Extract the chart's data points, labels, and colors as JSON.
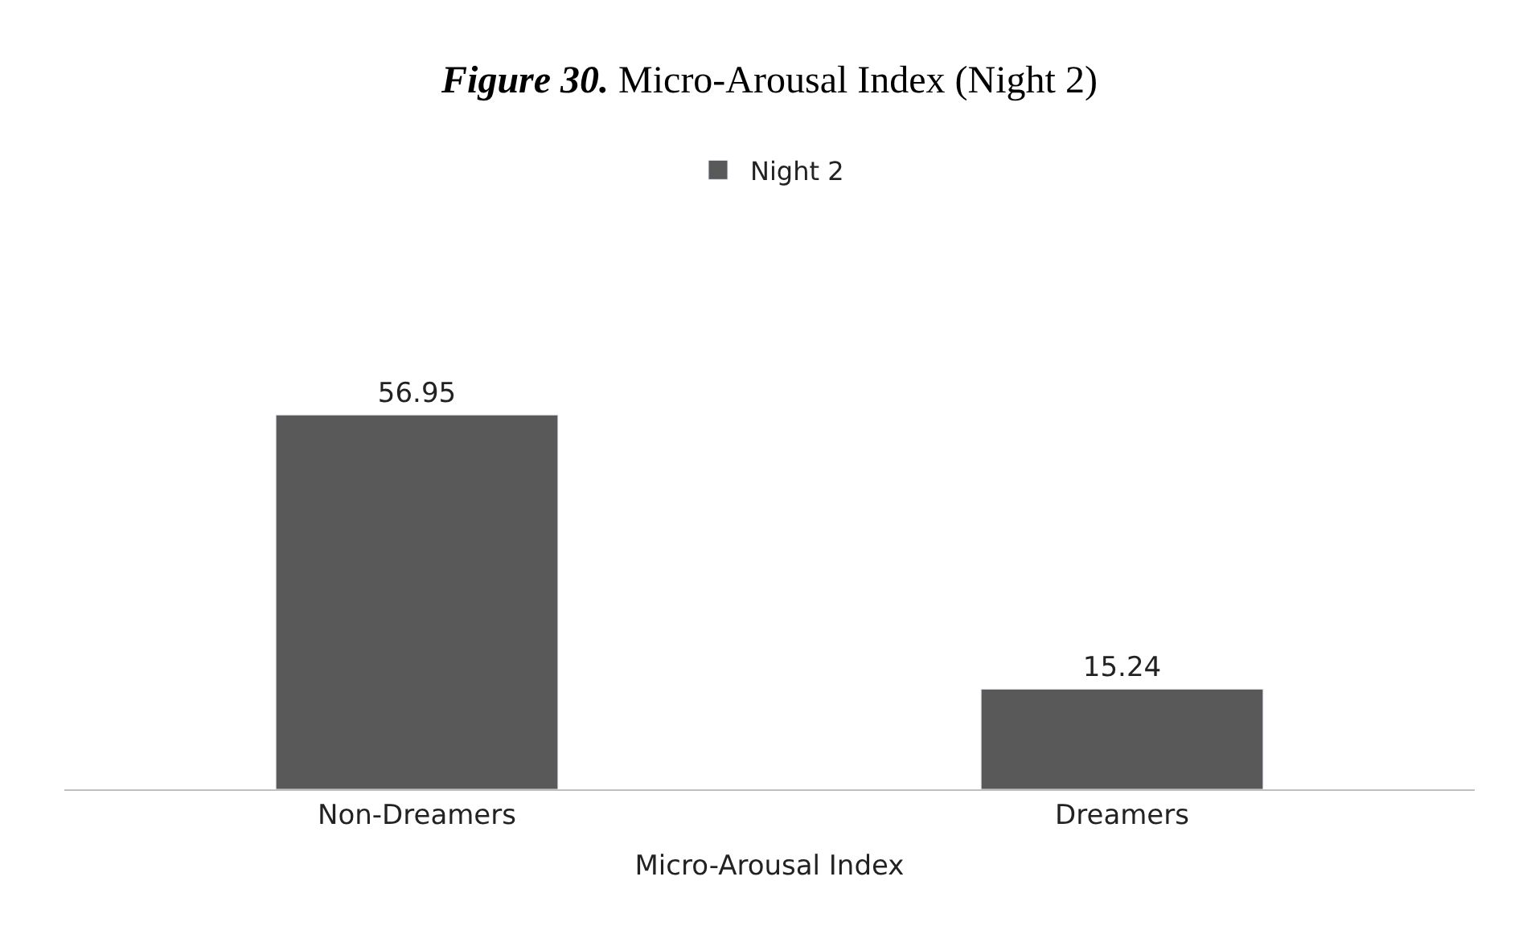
{
  "chart_data": {
    "type": "bar",
    "title": "Figure 30. Micro-Arousal Index (Night 2)",
    "xlabel": "Micro-Arousal Index",
    "categories": [
      "Non-Dreamers",
      "Dreamers"
    ],
    "series": [
      {
        "name": "Night 2",
        "color": "#595959",
        "values": [
          56.95,
          15.24
        ]
      }
    ],
    "data_labels": true,
    "legend": "top"
  }
}
